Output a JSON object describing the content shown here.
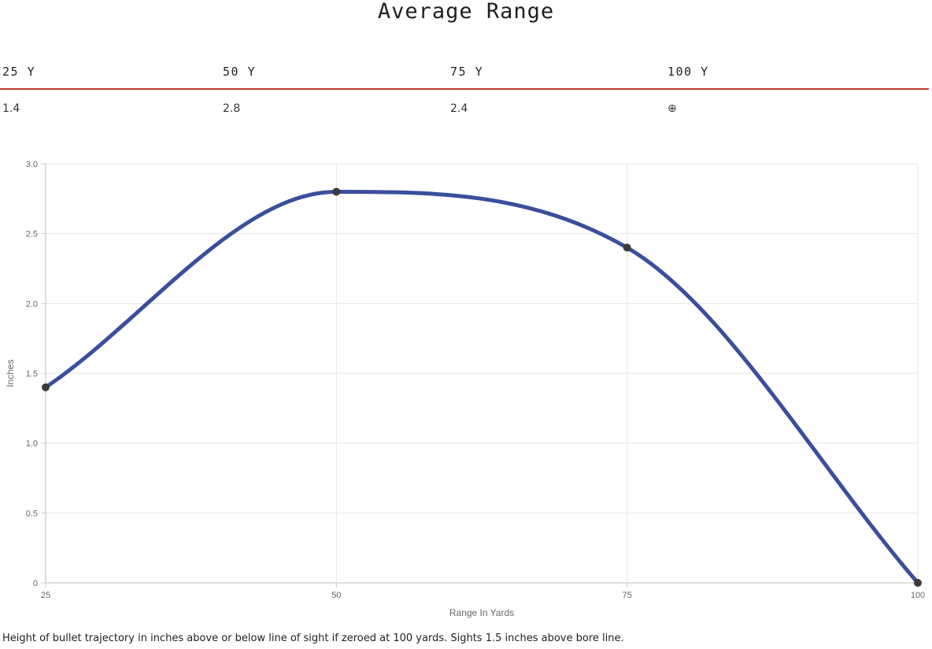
{
  "page": {
    "title": "Average Range",
    "caption": "Height of bullet trajectory in inches above or below line of sight if zeroed at 100 yards. Sights 1.5 inches above bore line."
  },
  "range_table": {
    "headers": [
      "25 Y",
      "50 Y",
      "75 Y",
      "100 Y"
    ],
    "values": [
      "1.4",
      "2.8",
      "2.4",
      "⊕"
    ],
    "accent_color": "#c0392b"
  },
  "chart_data": {
    "type": "line",
    "x": [
      25,
      50,
      75,
      100
    ],
    "x_tick_labels": [
      "25",
      "50",
      "75",
      "100"
    ],
    "series": [
      {
        "values": [
          1.4,
          2.8,
          2.4,
          0
        ],
        "color": "#3a4f9c"
      }
    ],
    "xlabel": "Range In Yards",
    "ylabel": "Inches",
    "y_tick_values": [
      0,
      0.5,
      1.0,
      1.5,
      2.0,
      2.5,
      3.0
    ],
    "y_tick_labels": [
      "0",
      "0.5",
      "1.0",
      "1.5",
      "2.0",
      "2.5",
      "3.0"
    ],
    "xlim": [
      25,
      100
    ],
    "ylim": [
      0,
      3.0
    ],
    "grid": true,
    "smooth": true,
    "point_color": "#3b3b3b"
  }
}
